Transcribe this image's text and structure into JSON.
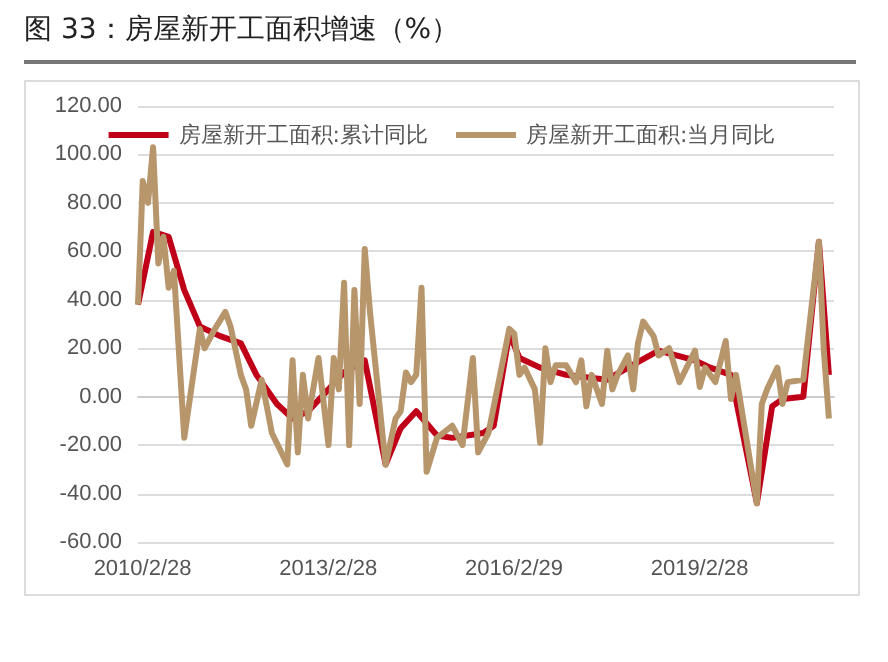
{
  "chart_data": {
    "type": "line",
    "title": "图 33：房屋新开工面积增速（%）",
    "xlim": [
      "2010-02",
      "2021-05"
    ],
    "xticks": [
      {
        "value": "2010-02-28",
        "label": "2010/2/28"
      },
      {
        "value": "2013-02-28",
        "label": "2013/2/28"
      },
      {
        "value": "2016-02-29",
        "label": "2016/2/29"
      },
      {
        "value": "2019-02-28",
        "label": "2019/2/28"
      }
    ],
    "ylim": [
      -60,
      120
    ],
    "yticks": [
      {
        "value": -60,
        "label": "-60.00"
      },
      {
        "value": -40,
        "label": "-40.00"
      },
      {
        "value": -20,
        "label": "-20.00"
      },
      {
        "value": 0,
        "label": "0.00"
      },
      {
        "value": 20,
        "label": "20.00"
      },
      {
        "value": 40,
        "label": "40.00"
      },
      {
        "value": 60,
        "label": "60.00"
      },
      {
        "value": 80,
        "label": "80.00"
      },
      {
        "value": 100,
        "label": "100.00"
      },
      {
        "value": 120,
        "label": "120.00"
      }
    ],
    "grid": "y",
    "legend": "top",
    "series": [
      {
        "name": "房屋新开工面积:累计同比",
        "color": "#c00018",
        "x": [
          "2010-02",
          "2010-05",
          "2010-08",
          "2010-11",
          "2011-02",
          "2011-06",
          "2011-10",
          "2012-01",
          "2012-05",
          "2012-08",
          "2012-11",
          "2013-03",
          "2013-06",
          "2013-10",
          "2014-02",
          "2014-05",
          "2014-08",
          "2014-12",
          "2015-03",
          "2015-09",
          "2015-11",
          "2016-02",
          "2016-04",
          "2016-08",
          "2017-01",
          "2017-09",
          "2018-01",
          "2018-07",
          "2019-02",
          "2019-05",
          "2019-09",
          "2020-02",
          "2020-05",
          "2020-07",
          "2020-11",
          "2021-02",
          "2021-04"
        ],
        "values": [
          38,
          68,
          66,
          44,
          29,
          25,
          22,
          9,
          -3,
          -9,
          -6,
          3,
          10,
          15,
          -28,
          -13,
          -6,
          -16,
          -17,
          -15,
          -12,
          26,
          16,
          12,
          9,
          7,
          12,
          19,
          15,
          12,
          9,
          -44,
          -4,
          -1,
          0,
          64,
          9
        ]
      },
      {
        "name": "房屋新开工面积:当月同比",
        "color": "#b8966c",
        "x": [
          "2010-02",
          "2010-03",
          "2010-04",
          "2010-05",
          "2010-06",
          "2010-07",
          "2010-08",
          "2010-09",
          "2010-11",
          "2011-02",
          "2011-03",
          "2011-05",
          "2011-07",
          "2011-08",
          "2011-10",
          "2011-11",
          "2011-12",
          "2012-02",
          "2012-04",
          "2012-07",
          "2012-08",
          "2012-09",
          "2012-10",
          "2012-11",
          "2013-01",
          "2013-03",
          "2013-04",
          "2013-05",
          "2013-06",
          "2013-07",
          "2013-08",
          "2013-09",
          "2013-10",
          "2013-11",
          "2014-02",
          "2014-04",
          "2014-05",
          "2014-06",
          "2014-07",
          "2014-08",
          "2014-09",
          "2014-10",
          "2014-12",
          "2015-03",
          "2015-05",
          "2015-07",
          "2015-08",
          "2015-10",
          "2016-02",
          "2016-03",
          "2016-04",
          "2016-05",
          "2016-07",
          "2016-08",
          "2016-09",
          "2016-10",
          "2016-11",
          "2017-01",
          "2017-03",
          "2017-04",
          "2017-05",
          "2017-06",
          "2017-08",
          "2017-09",
          "2017-10",
          "2017-11",
          "2018-01",
          "2018-02",
          "2018-03",
          "2018-04",
          "2018-06",
          "2018-07",
          "2018-09",
          "2018-11",
          "2019-02",
          "2019-03",
          "2019-04",
          "2019-06",
          "2019-08",
          "2019-09",
          "2019-10",
          "2020-02",
          "2020-03",
          "2020-04",
          "2020-06",
          "2020-07",
          "2020-08",
          "2020-11",
          "2021-02",
          "2021-03",
          "2021-04"
        ],
        "values": [
          38,
          89,
          80,
          103,
          55,
          66,
          45,
          52,
          -17,
          28,
          20,
          28,
          35,
          29,
          9,
          3,
          -12,
          7,
          -15,
          -28,
          15,
          -23,
          9,
          -9,
          16,
          -20,
          16,
          3,
          47,
          -20,
          44,
          -3,
          61,
          35,
          -28,
          -9,
          -6,
          10,
          6,
          9,
          45,
          -31,
          -17,
          -12,
          -20,
          16,
          -23,
          -15,
          28,
          26,
          9,
          12,
          3,
          -19,
          20,
          6,
          13,
          13,
          6,
          15,
          -4,
          9,
          -3,
          19,
          3,
          9,
          17,
          3,
          22,
          31,
          25,
          17,
          20,
          6,
          19,
          4,
          12,
          6,
          23,
          -1,
          9,
          -44,
          -3,
          3,
          12,
          -3,
          6,
          7,
          64,
          20,
          -9
        ]
      }
    ]
  }
}
